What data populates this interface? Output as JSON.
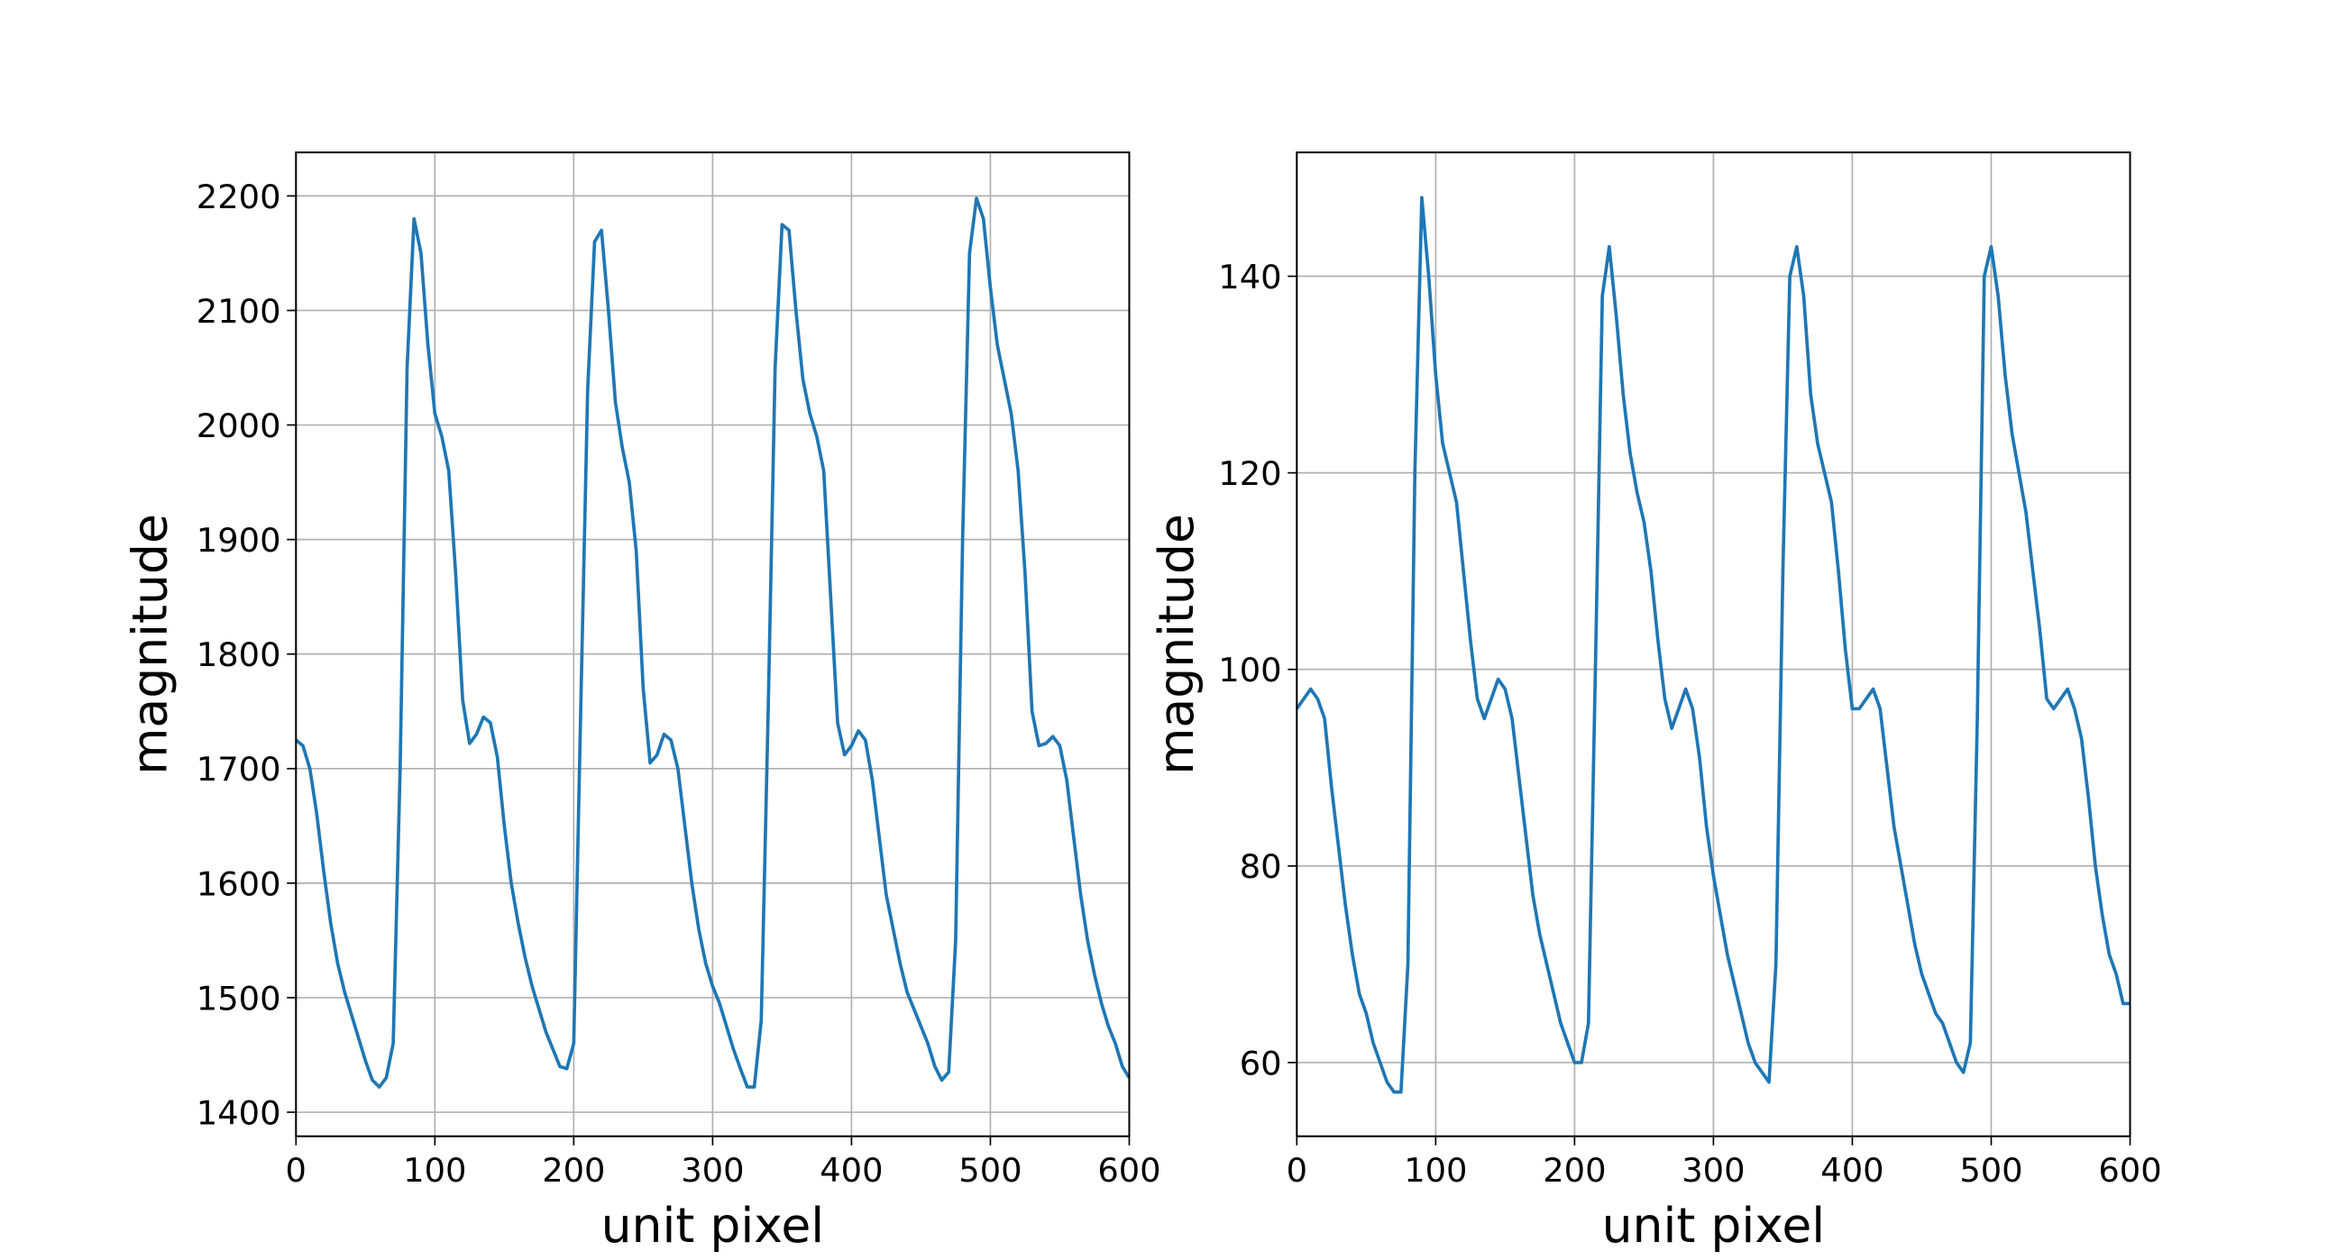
{
  "chart_data": [
    {
      "type": "line",
      "xlabel": "unit pixel",
      "ylabel": "magnitude",
      "grid": true,
      "xlim": [
        0,
        600
      ],
      "xticks": [
        0,
        100,
        200,
        300,
        400,
        500,
        600
      ],
      "ylim": [
        1379,
        2238
      ],
      "yticks": [
        1400,
        1500,
        1600,
        1700,
        1800,
        1900,
        2000,
        2100,
        2200
      ],
      "x": [
        0,
        5,
        10,
        15,
        20,
        25,
        30,
        35,
        40,
        45,
        50,
        55,
        60,
        65,
        70,
        75,
        80,
        85,
        90,
        95,
        100,
        105,
        110,
        115,
        120,
        125,
        130,
        135,
        140,
        145,
        150,
        155,
        160,
        165,
        170,
        175,
        180,
        185,
        190,
        195,
        200,
        205,
        210,
        215,
        220,
        225,
        230,
        235,
        240,
        245,
        250,
        255,
        260,
        265,
        270,
        275,
        280,
        285,
        290,
        295,
        300,
        305,
        310,
        315,
        320,
        325,
        330,
        335,
        340,
        345,
        350,
        355,
        360,
        365,
        370,
        375,
        380,
        385,
        390,
        395,
        400,
        405,
        410,
        415,
        420,
        425,
        430,
        435,
        440,
        445,
        450,
        455,
        460,
        465,
        470,
        475,
        480,
        485,
        490,
        495,
        500,
        505,
        510,
        515,
        520,
        525,
        530,
        535,
        540,
        545,
        550,
        555,
        560,
        565,
        570,
        575,
        580,
        585,
        590,
        595,
        600
      ],
      "series": [
        {
          "color": "#1f77b4",
          "values": [
            1725,
            1720,
            1700,
            1660,
            1610,
            1565,
            1530,
            1505,
            1485,
            1465,
            1445,
            1428,
            1422,
            1430,
            1460,
            1700,
            2050,
            2180,
            2150,
            2070,
            2010,
            1990,
            1960,
            1870,
            1760,
            1722,
            1730,
            1745,
            1740,
            1710,
            1650,
            1600,
            1565,
            1535,
            1510,
            1490,
            1470,
            1455,
            1440,
            1438,
            1460,
            1750,
            2030,
            2160,
            2170,
            2100,
            2020,
            1980,
            1950,
            1890,
            1770,
            1705,
            1712,
            1730,
            1725,
            1700,
            1650,
            1600,
            1560,
            1530,
            1510,
            1495,
            1475,
            1455,
            1438,
            1422,
            1422,
            1480,
            1750,
            2050,
            2175,
            2170,
            2100,
            2040,
            2010,
            1990,
            1960,
            1850,
            1740,
            1712,
            1720,
            1733,
            1725,
            1690,
            1640,
            1590,
            1560,
            1530,
            1505,
            1490,
            1475,
            1460,
            1440,
            1428,
            1435,
            1550,
            1900,
            2150,
            2198,
            2180,
            2120,
            2070,
            2040,
            2010,
            1960,
            1870,
            1750,
            1720,
            1722,
            1728,
            1720,
            1690,
            1640,
            1590,
            1550,
            1520,
            1495,
            1475,
            1460,
            1440,
            1430
          ]
        }
      ]
    },
    {
      "type": "line",
      "xlabel": "unit pixel",
      "ylabel": "magnitude",
      "grid": true,
      "xlim": [
        0,
        600
      ],
      "xticks": [
        0,
        100,
        200,
        300,
        400,
        500,
        600
      ],
      "ylim": [
        52.5,
        152.6
      ],
      "yticks": [
        60,
        80,
        100,
        120,
        140
      ],
      "x": [
        0,
        5,
        10,
        15,
        20,
        25,
        30,
        35,
        40,
        45,
        50,
        55,
        60,
        65,
        70,
        75,
        80,
        85,
        90,
        95,
        100,
        105,
        110,
        115,
        120,
        125,
        130,
        135,
        140,
        145,
        150,
        155,
        160,
        165,
        170,
        175,
        180,
        185,
        190,
        195,
        200,
        205,
        210,
        215,
        220,
        225,
        230,
        235,
        240,
        245,
        250,
        255,
        260,
        265,
        270,
        275,
        280,
        285,
        290,
        295,
        300,
        305,
        310,
        315,
        320,
        325,
        330,
        335,
        340,
        345,
        350,
        355,
        360,
        365,
        370,
        375,
        380,
        385,
        390,
        395,
        400,
        405,
        410,
        415,
        420,
        425,
        430,
        435,
        440,
        445,
        450,
        455,
        460,
        465,
        470,
        475,
        480,
        485,
        490,
        495,
        500,
        505,
        510,
        515,
        520,
        525,
        530,
        535,
        540,
        545,
        550,
        555,
        560,
        565,
        570,
        575,
        580,
        585,
        590,
        595,
        600
      ],
      "series": [
        {
          "color": "#1f77b4",
          "values": [
            96,
            97,
            98,
            97,
            95,
            88,
            82,
            76,
            71,
            67,
            65,
            62,
            60,
            58,
            57,
            57,
            70,
            120,
            148,
            140,
            130,
            123,
            120,
            117,
            110,
            103,
            97,
            95,
            97,
            99,
            98,
            95,
            89,
            83,
            77,
            73,
            70,
            67,
            64,
            62,
            60,
            60,
            64,
            100,
            138,
            143,
            136,
            128,
            122,
            118,
            115,
            110,
            103,
            97,
            94,
            96,
            98,
            96,
            91,
            84,
            79,
            75,
            71,
            68,
            65,
            62,
            60,
            59,
            58,
            70,
            110,
            140,
            143,
            138,
            128,
            123,
            120,
            117,
            110,
            102,
            96,
            96,
            97,
            98,
            96,
            90,
            84,
            80,
            76,
            72,
            69,
            67,
            65,
            64,
            62,
            60,
            59,
            62,
            95,
            140,
            143,
            138,
            130,
            124,
            120,
            116,
            110,
            104,
            97,
            96,
            97,
            98,
            96,
            93,
            87,
            80,
            75,
            71,
            69,
            66,
            66
          ]
        }
      ]
    }
  ]
}
